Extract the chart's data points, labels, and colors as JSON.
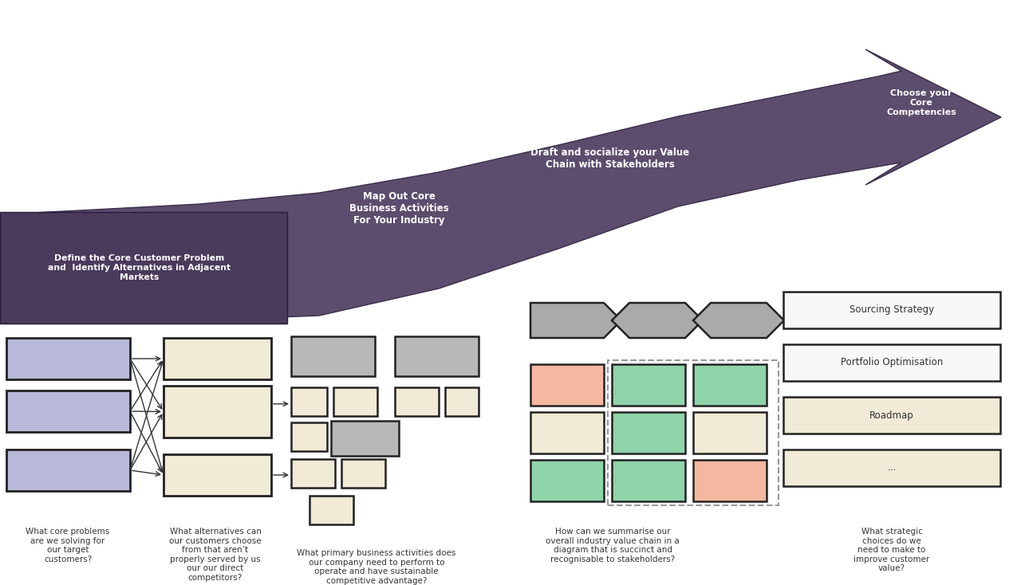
{
  "fig_width": 12.85,
  "fig_height": 7.34,
  "bg_color": "#ffffff",
  "arrow_color": "#5c4d6e",
  "step1_box_color": "#5c4d6e",
  "step_labels": [
    "Define the Core Customer Problem\nand  Identify Alternatives in Adjacent\nMarkets",
    "Map Out Core\nBusiness Activities\nFor Your Industry",
    "Draft and socialize your Value\nChain with Stakeholders",
    "Choose your\nCore\nCompetencies"
  ],
  "question_labels": [
    "What core problems\nare we solving for\nour target\ncustomers?",
    "What alternatives can\nour customers choose\nfrom that aren’t\nproperly served by us\nour our direct\ncompetitors?",
    "What primary business activities does\nour company need to perform to\noperate and have sustainable\ncompetitive advantage?",
    "How can we summarise our\noverall industry value chain in a\ndiagram that is succinct and\nrecognisable to stakeholders?",
    "What strategic\nchoices do we\nneed to make to\nimprove customer\nvalue?"
  ],
  "blue_box_color": "#b8b8d8",
  "cream_box_color": "#f0ead6",
  "gray_box_color": "#b8b8b8",
  "salmon_box_color": "#f4b8a0",
  "green_box_color": "#90d4aa",
  "competency_boxes": [
    "Sourcing Strategy",
    "Portfolio Optimisation",
    "Roadmap",
    "..."
  ],
  "competency_colors": [
    "#f8f8f8",
    "#f8f8f8",
    "#f0ead6",
    "#f0ead6"
  ]
}
